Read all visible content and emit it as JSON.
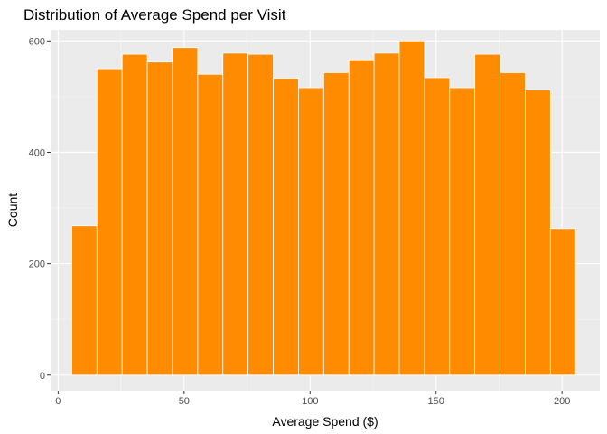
{
  "chart_data": {
    "type": "bar",
    "title": "Distribution of Average Spend per Visit",
    "xlabel": "Average Spend ($)",
    "ylabel": "Count",
    "xlim": [
      -3,
      215
    ],
    "ylim": [
      -28,
      620
    ],
    "x_ticks": [
      0,
      50,
      100,
      150,
      200
    ],
    "y_ticks": [
      0,
      200,
      400,
      600
    ],
    "bin_width": 10,
    "bins": [
      {
        "x_start": 5.4,
        "x_end": 15.4,
        "count": 268
      },
      {
        "x_start": 15.4,
        "x_end": 25.4,
        "count": 550
      },
      {
        "x_start": 25.4,
        "x_end": 35.4,
        "count": 576
      },
      {
        "x_start": 35.4,
        "x_end": 45.4,
        "count": 562
      },
      {
        "x_start": 45.4,
        "x_end": 55.4,
        "count": 588
      },
      {
        "x_start": 55.4,
        "x_end": 65.4,
        "count": 540
      },
      {
        "x_start": 65.4,
        "x_end": 75.4,
        "count": 578
      },
      {
        "x_start": 75.4,
        "x_end": 85.4,
        "count": 576
      },
      {
        "x_start": 85.4,
        "x_end": 95.4,
        "count": 533
      },
      {
        "x_start": 95.4,
        "x_end": 105.4,
        "count": 516
      },
      {
        "x_start": 105.4,
        "x_end": 115.4,
        "count": 543
      },
      {
        "x_start": 115.4,
        "x_end": 125.4,
        "count": 566
      },
      {
        "x_start": 125.4,
        "x_end": 135.4,
        "count": 578
      },
      {
        "x_start": 135.4,
        "x_end": 145.4,
        "count": 600
      },
      {
        "x_start": 145.4,
        "x_end": 155.4,
        "count": 534
      },
      {
        "x_start": 155.4,
        "x_end": 165.4,
        "count": 516
      },
      {
        "x_start": 165.4,
        "x_end": 175.4,
        "count": 576
      },
      {
        "x_start": 175.4,
        "x_end": 185.4,
        "count": 543
      },
      {
        "x_start": 185.4,
        "x_end": 195.4,
        "count": 512
      },
      {
        "x_start": 195.4,
        "x_end": 205.4,
        "count": 263
      }
    ],
    "grid": true,
    "colors": {
      "bar_fill": "#FF8C00",
      "bar_outline": "#ffffff",
      "panel_background": "#EBEBEB",
      "grid_major": "#ffffff",
      "grid_minor": "#F5F5F5"
    }
  }
}
